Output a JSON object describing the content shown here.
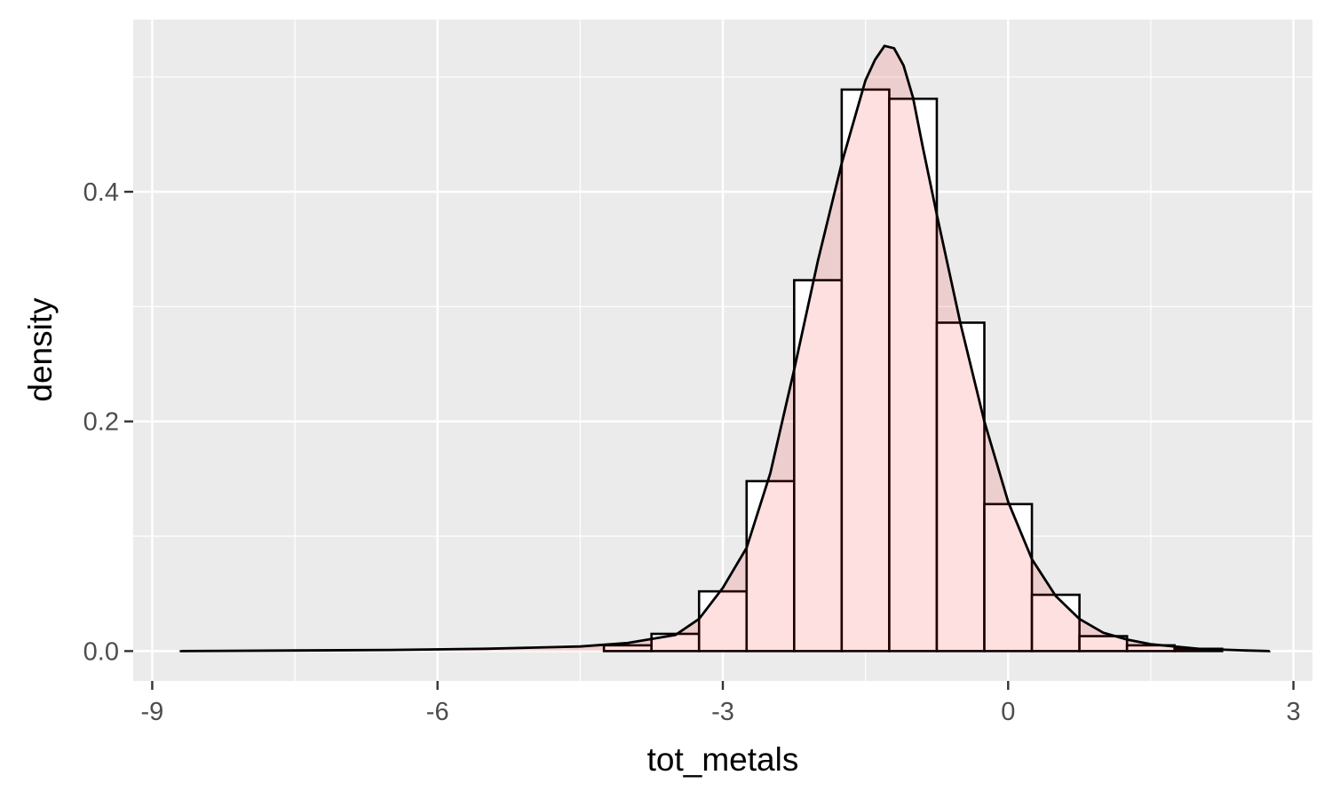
{
  "chart_data": {
    "type": "bar",
    "xlabel": "tot_metals",
    "ylabel": "density",
    "xlim": [
      -9.2,
      3.2
    ],
    "ylim": [
      -0.026,
      0.55
    ],
    "x_ticks": [
      -9,
      -6,
      -3,
      0,
      3
    ],
    "x_tick_labels": [
      "-9",
      "-6",
      "-3",
      "0",
      "3"
    ],
    "y_ticks": [
      0.0,
      0.2,
      0.4
    ],
    "y_tick_labels": [
      "0.0",
      "0.2",
      "0.4"
    ],
    "grid": true,
    "bin_width": 0.5,
    "histogram_bins": {
      "x_left": [
        -4.25,
        -3.75,
        -3.25,
        -2.75,
        -2.25,
        -1.75,
        -1.25,
        -0.75,
        -0.25,
        0.25,
        0.75,
        1.25,
        1.75
      ],
      "density": [
        0.005,
        0.015,
        0.052,
        0.148,
        0.323,
        0.489,
        0.481,
        0.286,
        0.128,
        0.049,
        0.013,
        0.005,
        0.002
      ]
    },
    "density_curve": {
      "x": [
        -8.7,
        -7.5,
        -6.5,
        -5.5,
        -5.0,
        -4.5,
        -4.0,
        -3.5,
        -3.25,
        -3.0,
        -2.75,
        -2.5,
        -2.25,
        -2.0,
        -1.75,
        -1.5,
        -1.4,
        -1.3,
        -1.2,
        -1.1,
        -1.0,
        -0.9,
        -0.75,
        -0.5,
        -0.25,
        0.0,
        0.25,
        0.5,
        0.75,
        1.0,
        1.25,
        1.5,
        2.0,
        2.5,
        2.75
      ],
      "y": [
        0.0,
        0.0005,
        0.001,
        0.002,
        0.003,
        0.004,
        0.007,
        0.014,
        0.028,
        0.055,
        0.09,
        0.155,
        0.245,
        0.34,
        0.425,
        0.497,
        0.515,
        0.527,
        0.525,
        0.51,
        0.482,
        0.44,
        0.38,
        0.285,
        0.2,
        0.13,
        0.08,
        0.048,
        0.028,
        0.016,
        0.01,
        0.006,
        0.002,
        0.0005,
        0.0
      ]
    },
    "colors": {
      "panel_background": "#ebebeb",
      "grid": "#ffffff",
      "bar_outline": "#000000",
      "bar_fill": "#ffffff",
      "density_fill": "#ff0000",
      "density_line": "#000000"
    }
  }
}
